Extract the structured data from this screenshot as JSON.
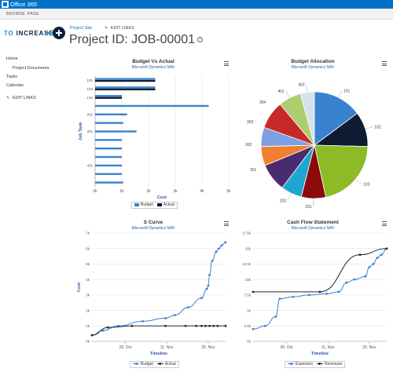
{
  "o365": {
    "title": "Office 365"
  },
  "ribbon": {
    "browse": "BROWSE",
    "page": "PAGE"
  },
  "logo": {
    "part1": "TO",
    "part2": "INCREASE"
  },
  "header": {
    "project_site": "Project Site",
    "edit_links": "EDIT LINKS",
    "title": "Project ID: JOB-00001",
    "info_glyph": "i"
  },
  "nav": {
    "items": [
      "Home",
      "Project Documents",
      "Tasks",
      "Calendar"
    ],
    "edit_links": "EDIT LINKS"
  },
  "icons": {
    "pencil": "pencil-icon",
    "menu": "hamburger-menu-icon",
    "info": "info-icon"
  },
  "colors": {
    "budget": "#3a82d0",
    "actual": "#0e1b30",
    "suite_bar": "#0072c6"
  },
  "chart_data": [
    {
      "type": "bar",
      "orientation": "horizontal",
      "title": "Budget Vs Actual",
      "subtitle": "Microsoft Dynamics NAV",
      "xlabel": "Cost",
      "ylabel": "Job Task",
      "categories": [
        "101",
        "102",
        "103",
        "",
        "202",
        "",
        "301",
        "",
        "",
        "",
        "401",
        "",
        ""
      ],
      "x_ticks": [
        "0k",
        "1k",
        "2k",
        "3k",
        "4k",
        "5k"
      ],
      "xlim": [
        0,
        5000
      ],
      "series": [
        {
          "name": "Budget",
          "values": [
            2250,
            2250,
            1000,
            4250,
            1200,
            1050,
            1550,
            1000,
            1000,
            1000,
            1000,
            1000,
            1050
          ]
        },
        {
          "name": "Actual",
          "values": [
            2250,
            2250,
            1000,
            0,
            0,
            0,
            0,
            0,
            0,
            0,
            0,
            0,
            0
          ]
        }
      ],
      "tick_labels_shown": [
        "101",
        "102",
        "103",
        "202",
        "301",
        "401"
      ],
      "legend": [
        "Budget",
        "Actual"
      ],
      "legend_position": "bottom"
    },
    {
      "type": "pie",
      "title": "Budget Allocation",
      "subtitle": "Microsoft Dynamics NAV",
      "slices": [
        {
          "label": "101",
          "value": 14,
          "color": "#3a82d0"
        },
        {
          "label": "102",
          "value": 10,
          "color": "#0e1b30"
        },
        {
          "label": "103",
          "value": 20,
          "color": "#8cbb26"
        },
        {
          "label": "201",
          "value": 7,
          "color": "#8b0a0a"
        },
        {
          "label": "202",
          "value": 6,
          "color": "#1da6d2"
        },
        {
          "label": "",
          "value": 8,
          "color": "#4a2c6e"
        },
        {
          "label": "",
          "value": 5.5,
          "color": "#f08030"
        },
        {
          "label": "",
          "value": 5.5,
          "color": "#7e9fe3"
        },
        {
          "label": "",
          "value": 8,
          "color": "#c72828"
        },
        {
          "label": "401",
          "value": 6.5,
          "color": "#aacd6e"
        },
        {
          "label": "402",
          "value": 4,
          "color": "#d6e1ee"
        }
      ],
      "extra_labels": [
        "301",
        "302",
        "303",
        "304"
      ]
    },
    {
      "type": "line",
      "title": "S Curve",
      "subtitle": "Microsoft Dynamics NAV",
      "xlabel": "Timeline",
      "ylabel": "Cost",
      "x_ticks": [
        "28. Oct",
        "11. Nov",
        "25. Nov"
      ],
      "y_ticks": [
        "0k",
        "1k",
        "2k",
        "3k",
        "4k",
        "5k",
        "6k",
        "7k"
      ],
      "ylim": [
        0,
        7000
      ],
      "series": [
        {
          "name": "Budget",
          "x": [
            0,
            0.08,
            0.2,
            0.38,
            0.55,
            0.62,
            0.72,
            0.82,
            0.86,
            0.87,
            0.88,
            0.9,
            0.93,
            0.95,
            0.97,
            1.0
          ],
          "values": [
            400,
            700,
            1000,
            1300,
            1500,
            1700,
            2200,
            2800,
            3400,
            3600,
            4300,
            5200,
            5800,
            6000,
            6200,
            6400
          ]
        },
        {
          "name": "Actual",
          "x": [
            0,
            0.12,
            0.3,
            0.55,
            0.7,
            0.78,
            0.82,
            0.85,
            0.88,
            0.91,
            0.94,
            1.0
          ],
          "values": [
            400,
            900,
            1000,
            1000,
            1000,
            1000,
            1000,
            1000,
            1000,
            1000,
            1000,
            1000
          ]
        }
      ],
      "legend": [
        "Budget",
        "Actual"
      ],
      "legend_position": "bottom"
    },
    {
      "type": "line",
      "title": "Cash Flow Statement",
      "subtitle": "Microsoft Dynamics NAV",
      "xlabel": "Timeline",
      "ylabel": "",
      "x_ticks": [
        "28. Oct",
        "11. Nov",
        "25. Nov"
      ],
      "y_ticks": [
        "0k",
        "2.5k",
        "5k",
        "7.5k",
        "10k",
        "12.5k",
        "15k",
        "17.5k"
      ],
      "ylim": [
        0,
        17500
      ],
      "series": [
        {
          "name": "Expenses",
          "x": [
            0,
            0.09,
            0.17,
            0.2,
            0.3,
            0.42,
            0.55,
            0.64,
            0.7,
            0.76,
            0.84,
            0.87,
            0.9,
            0.93,
            0.96,
            1.0
          ],
          "values": [
            2000,
            2500,
            4000,
            6900,
            7200,
            7500,
            7700,
            8000,
            9500,
            10000,
            10500,
            12000,
            12500,
            13500,
            14000,
            15000
          ]
        },
        {
          "name": "Revenues",
          "x": [
            0,
            0.5,
            0.8,
            1.0
          ],
          "values": [
            8000,
            8000,
            14000,
            15000
          ]
        }
      ],
      "legend": [
        "Expenses",
        "Revenues"
      ],
      "legend_position": "bottom"
    }
  ]
}
